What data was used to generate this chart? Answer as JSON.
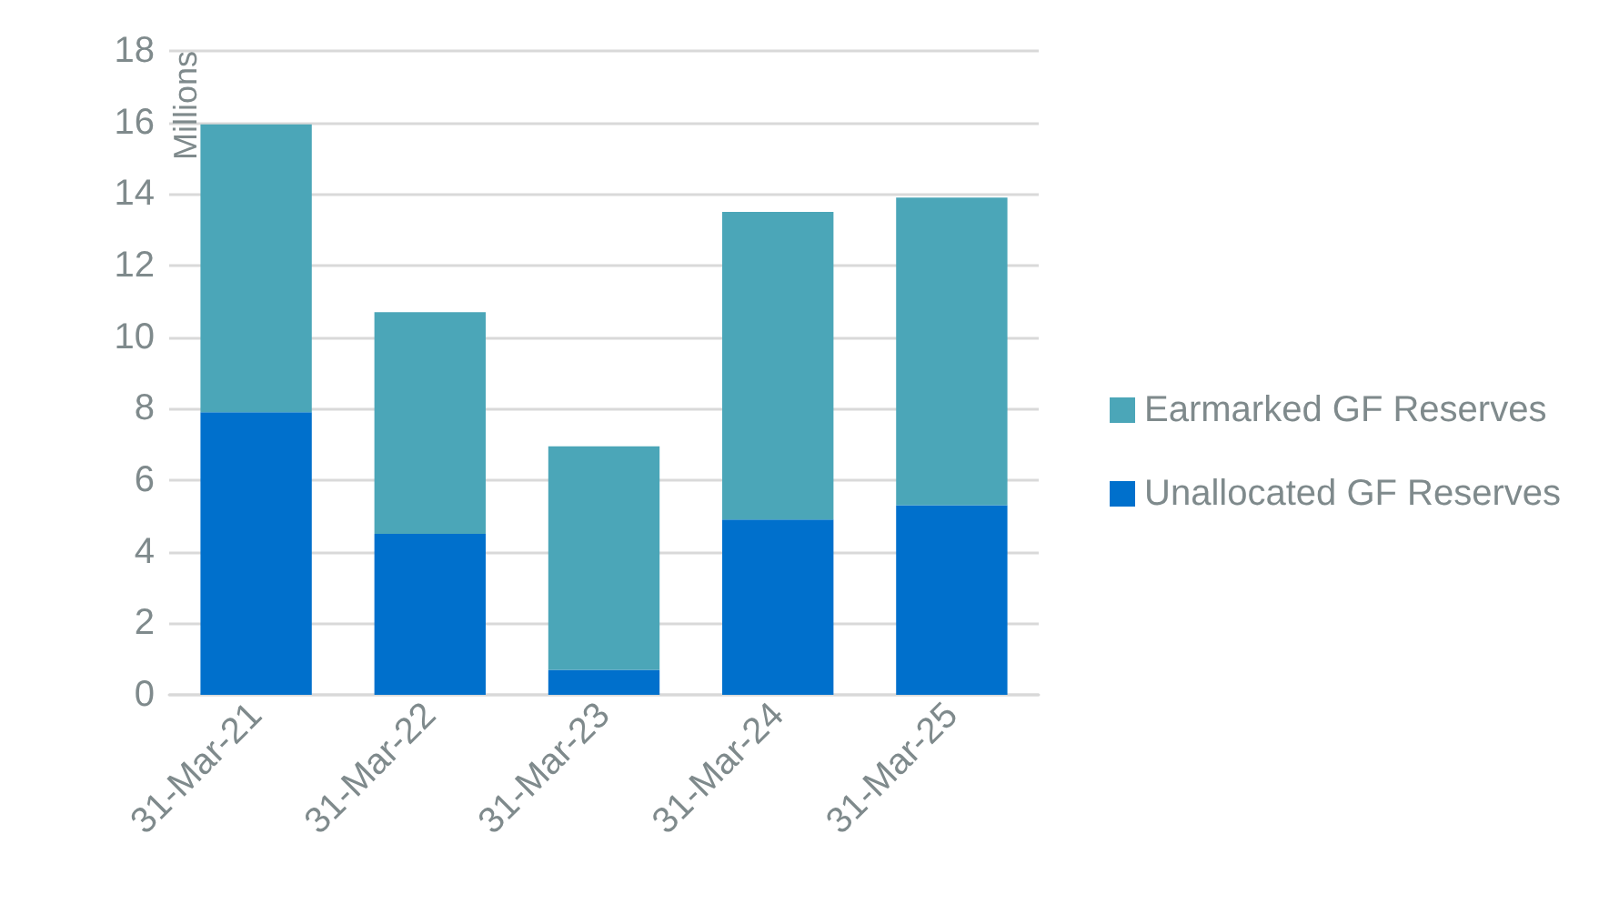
{
  "chart_data": {
    "type": "bar",
    "ylabel": "Millions",
    "categories": [
      "31-Mar-21",
      "31-Mar-22",
      "31-Mar-23",
      "31-Mar-24",
      "31-Mar-25"
    ],
    "stacked": true,
    "series": [
      {
        "name": "Unallocated GF Reserves",
        "color": "#0070cc",
        "values": [
          7.9,
          4.5,
          0.7,
          4.9,
          5.3
        ]
      },
      {
        "name": "Earmarked GF Reserves",
        "color": "#4ba6b8",
        "values": [
          8.05,
          6.2,
          6.25,
          8.6,
          8.6
        ]
      }
    ],
    "ylim": [
      0,
      18
    ],
    "yticks": [
      0,
      2,
      4,
      6,
      8,
      10,
      12,
      14,
      16,
      18
    ],
    "grid": "y",
    "legend": "right"
  }
}
